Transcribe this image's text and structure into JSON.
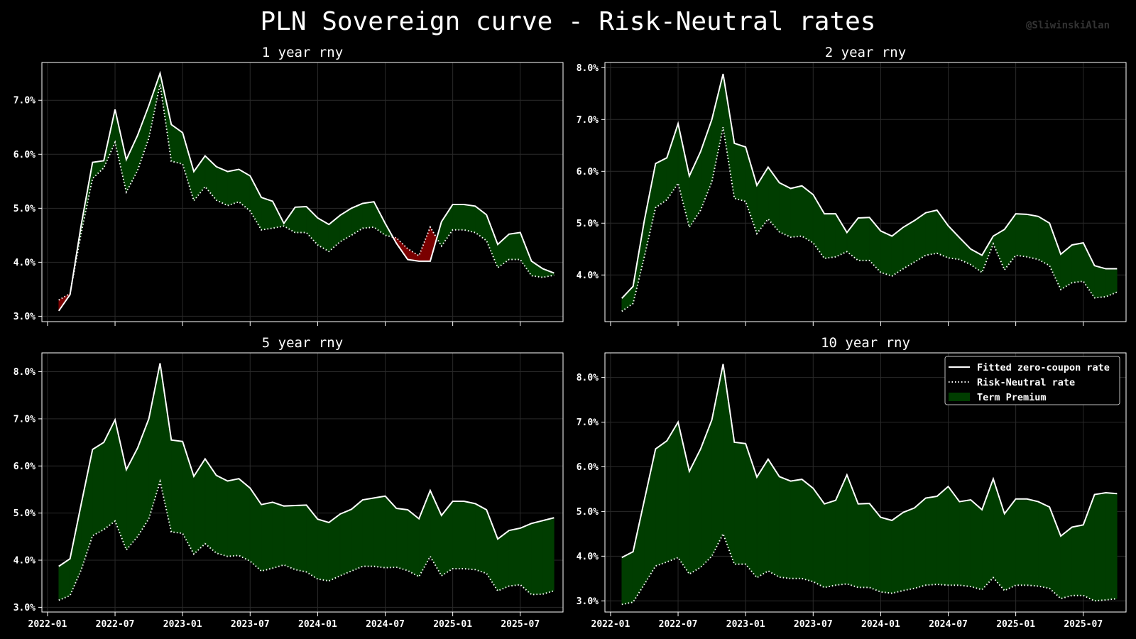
{
  "title": "PLN Sovereign curve - Risk-Neutral rates",
  "watermark": "@SliwinskiAlan",
  "colors": {
    "fitted": "#ffffff",
    "rn": "#ffffff",
    "premium_pos": "#003d00",
    "premium_neg": "#7a0000",
    "grid": "#2a2a2a",
    "axes": "#ffffff"
  },
  "legend": {
    "placement": "top-right",
    "entries": [
      "Fitted zero-coupon rate",
      "Risk-Neutral rate",
      "Term Premium"
    ]
  },
  "chart_data": [
    {
      "type": "area",
      "title": "1 year rny",
      "x_start": "2022-02",
      "xticks": [
        "2022-01",
        "2022-07",
        "2023-01",
        "2023-07",
        "2024-01",
        "2024-07",
        "2025-01",
        "2025-07"
      ],
      "ylim": [
        2.9,
        7.7
      ],
      "yticks": [
        "3.0%",
        "4.0%",
        "5.0%",
        "6.0%",
        "7.0%"
      ],
      "grid": true,
      "series": [
        {
          "name": "Fitted zero-coupon rate",
          "values": [
            3.1,
            3.4,
            4.7,
            5.85,
            5.88,
            6.83,
            5.9,
            6.35,
            6.9,
            7.5,
            6.55,
            6.4,
            5.68,
            5.97,
            5.77,
            5.68,
            5.72,
            5.6,
            5.2,
            5.13,
            4.72,
            5.02,
            5.03,
            4.82,
            4.7,
            4.87,
            5.0,
            5.09,
            5.12,
            4.72,
            4.35,
            4.05,
            4.02,
            4.02,
            4.75,
            5.07,
            5.07,
            5.04,
            4.88,
            4.33,
            4.52,
            4.55,
            4.02,
            3.88,
            3.8
          ]
        },
        {
          "name": "Risk-Neutral rate",
          "values": [
            3.3,
            3.42,
            4.55,
            5.55,
            5.75,
            6.22,
            5.3,
            5.7,
            6.3,
            7.3,
            5.87,
            5.82,
            5.14,
            5.4,
            5.15,
            5.05,
            5.12,
            4.95,
            4.6,
            4.63,
            4.67,
            4.55,
            4.55,
            4.32,
            4.2,
            4.38,
            4.5,
            4.63,
            4.65,
            4.5,
            4.45,
            4.25,
            4.12,
            4.65,
            4.3,
            4.6,
            4.6,
            4.55,
            4.4,
            3.9,
            4.05,
            4.05,
            3.75,
            3.72,
            3.76
          ]
        }
      ]
    },
    {
      "type": "area",
      "title": "2 year rny",
      "x_start": "2022-02",
      "xticks": [
        "2022-01",
        "2022-07",
        "2023-01",
        "2023-07",
        "2024-01",
        "2024-07",
        "2025-01",
        "2025-07"
      ],
      "ylim": [
        3.1,
        8.1
      ],
      "yticks": [
        "4.0%",
        "5.0%",
        "6.0%",
        "7.0%",
        "8.0%"
      ],
      "grid": true,
      "series": [
        {
          "name": "Fitted zero-coupon rate",
          "values": [
            3.55,
            3.78,
            5.05,
            6.15,
            6.26,
            6.92,
            5.91,
            6.38,
            7.0,
            7.88,
            6.54,
            6.47,
            5.73,
            6.08,
            5.78,
            5.67,
            5.72,
            5.55,
            5.18,
            5.18,
            4.82,
            5.1,
            5.11,
            4.85,
            4.75,
            4.92,
            5.05,
            5.2,
            5.25,
            4.95,
            4.72,
            4.5,
            4.38,
            4.75,
            4.88,
            5.18,
            5.17,
            5.13,
            5.0,
            4.4,
            4.58,
            4.62,
            4.18,
            4.12,
            4.12
          ]
        },
        {
          "name": "Risk-Neutral rate",
          "values": [
            3.3,
            3.45,
            4.35,
            5.3,
            5.45,
            5.77,
            4.92,
            5.25,
            5.8,
            6.85,
            5.48,
            5.42,
            4.8,
            5.08,
            4.83,
            4.73,
            4.75,
            4.62,
            4.32,
            4.35,
            4.45,
            4.28,
            4.28,
            4.05,
            3.98,
            4.12,
            4.25,
            4.38,
            4.42,
            4.33,
            4.3,
            4.2,
            4.05,
            4.6,
            4.1,
            4.38,
            4.35,
            4.3,
            4.18,
            3.72,
            3.85,
            3.88,
            3.56,
            3.58,
            3.67
          ]
        }
      ]
    },
    {
      "type": "area",
      "title": "5 year rny",
      "x_start": "2022-02",
      "xticks": [
        "2022-01",
        "2022-07",
        "2023-01",
        "2023-07",
        "2024-01",
        "2024-07",
        "2025-01",
        "2025-07"
      ],
      "ylim": [
        2.9,
        8.4
      ],
      "yticks": [
        "3.0%",
        "4.0%",
        "5.0%",
        "6.0%",
        "7.0%",
        "8.0%"
      ],
      "grid": true,
      "series": [
        {
          "name": "Fitted zero-coupon rate",
          "values": [
            3.87,
            4.03,
            5.2,
            6.35,
            6.5,
            6.98,
            5.92,
            6.38,
            7.0,
            8.18,
            6.55,
            6.52,
            5.78,
            6.15,
            5.8,
            5.68,
            5.73,
            5.53,
            5.18,
            5.23,
            5.15,
            5.16,
            5.17,
            4.87,
            4.8,
            4.98,
            5.08,
            5.28,
            5.32,
            5.36,
            5.1,
            5.07,
            4.88,
            5.48,
            4.95,
            5.25,
            5.25,
            5.2,
            5.07,
            4.45,
            4.63,
            4.68,
            4.78,
            4.84,
            4.9
          ]
        },
        {
          "name": "Risk-Neutral rate",
          "values": [
            3.15,
            3.25,
            3.8,
            4.52,
            4.65,
            4.83,
            4.22,
            4.5,
            4.88,
            5.67,
            4.6,
            4.57,
            4.13,
            4.35,
            4.15,
            4.08,
            4.1,
            3.98,
            3.77,
            3.83,
            3.9,
            3.8,
            3.75,
            3.6,
            3.56,
            3.67,
            3.77,
            3.87,
            3.87,
            3.84,
            3.85,
            3.78,
            3.65,
            4.08,
            3.67,
            3.82,
            3.82,
            3.8,
            3.72,
            3.35,
            3.45,
            3.48,
            3.27,
            3.28,
            3.35
          ]
        }
      ]
    },
    {
      "type": "area",
      "title": "10 year rny",
      "x_start": "2022-02",
      "xticks": [
        "2022-01",
        "2022-07",
        "2023-01",
        "2023-07",
        "2024-01",
        "2024-07",
        "2025-01",
        "2025-07"
      ],
      "ylim": [
        2.75,
        8.55
      ],
      "yticks": [
        "3.0%",
        "4.0%",
        "5.0%",
        "6.0%",
        "7.0%",
        "8.0%"
      ],
      "grid": true,
      "series": [
        {
          "name": "Fitted zero-coupon rate",
          "values": [
            3.97,
            4.1,
            5.25,
            6.4,
            6.58,
            7.0,
            5.9,
            6.4,
            7.05,
            8.3,
            6.55,
            6.52,
            5.77,
            6.17,
            5.78,
            5.68,
            5.72,
            5.52,
            5.17,
            5.25,
            5.82,
            5.17,
            5.18,
            4.87,
            4.8,
            4.98,
            5.08,
            5.3,
            5.34,
            5.56,
            5.22,
            5.26,
            5.04,
            5.73,
            4.95,
            5.28,
            5.28,
            5.22,
            5.1,
            4.45,
            4.65,
            4.7,
            5.38,
            5.42,
            5.4
          ]
        },
        {
          "name": "Risk-Neutral rate",
          "values": [
            2.92,
            2.97,
            3.37,
            3.78,
            3.87,
            3.97,
            3.6,
            3.75,
            4.0,
            4.5,
            3.82,
            3.82,
            3.52,
            3.67,
            3.53,
            3.5,
            3.5,
            3.43,
            3.3,
            3.35,
            3.38,
            3.3,
            3.3,
            3.2,
            3.17,
            3.23,
            3.28,
            3.35,
            3.37,
            3.35,
            3.35,
            3.32,
            3.25,
            3.52,
            3.23,
            3.35,
            3.35,
            3.33,
            3.28,
            3.05,
            3.12,
            3.12,
            3.0,
            3.02,
            3.05
          ]
        }
      ]
    }
  ]
}
